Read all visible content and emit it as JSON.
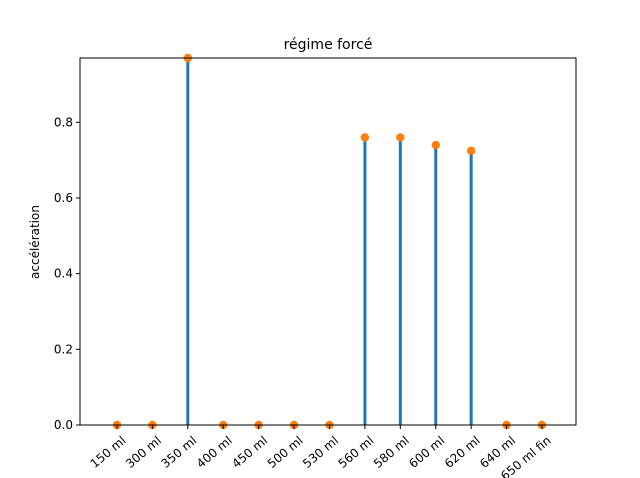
{
  "chart_data": {
    "type": "bar",
    "title": "régime forcé",
    "xlabel": "",
    "ylabel": "accélération",
    "categories": [
      "150 ml",
      "300 ml",
      "350 ml",
      "400 ml",
      "450 ml",
      "500 ml",
      "530 ml",
      "560 ml",
      "580 ml",
      "600 ml",
      "620 ml",
      "640 ml",
      "650 ml fin"
    ],
    "values": [
      0.0,
      0.0,
      0.98,
      0.0,
      0.0,
      0.0,
      0.0,
      0.76,
      0.76,
      0.74,
      0.725,
      0.0,
      0.0
    ],
    "ylim": [
      0,
      0.97
    ],
    "yticks": [
      "0.0",
      "0.2",
      "0.4",
      "0.6",
      "0.8"
    ],
    "ytick_values": [
      0.0,
      0.2,
      0.4,
      0.6,
      0.8
    ],
    "grid": false,
    "colors": {
      "bar": "#1f77b4",
      "marker": "#ff7f0e"
    }
  }
}
